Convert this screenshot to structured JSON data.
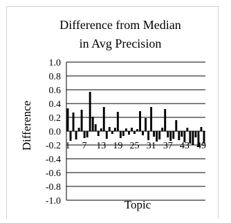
{
  "chart_data": {
    "type": "bar",
    "title_line1": "Difference from Median",
    "title_line2": "in Avg Precision",
    "xlabel": "Topic",
    "ylabel": "Difference",
    "ylim": [
      -1.0,
      1.0
    ],
    "yticks": [
      "1.0",
      "0.8",
      "0.6",
      "0.4",
      "0.2",
      "0.0",
      "-0.2",
      "-0.4",
      "-0.6",
      "-0.8",
      "-1.0"
    ],
    "grid": true,
    "legend": "none",
    "categories": [
      1,
      2,
      3,
      4,
      5,
      6,
      7,
      8,
      9,
      10,
      11,
      12,
      13,
      14,
      15,
      16,
      17,
      18,
      19,
      20,
      21,
      22,
      23,
      24,
      25,
      26,
      27,
      28,
      29,
      30,
      31,
      32,
      33,
      34,
      35,
      36,
      37,
      38,
      39,
      40,
      41,
      42,
      43,
      44,
      45,
      46,
      47,
      48,
      49,
      50
    ],
    "xtick_labels": [
      "1",
      "7",
      "13",
      "19",
      "25",
      "31",
      "37",
      "43",
      "49"
    ],
    "values": [
      0.33,
      -0.14,
      0.27,
      -0.12,
      0.05,
      0.31,
      -0.1,
      -0.09,
      0.57,
      0.21,
      0.1,
      -0.07,
      0.04,
      0.35,
      -0.11,
      0.06,
      -0.04,
      0.05,
      0.28,
      -0.1,
      -0.07,
      0.04,
      -0.05,
      0.05,
      -0.04,
      0.03,
      0.29,
      -0.06,
      0.19,
      -0.13,
      0.35,
      -0.08,
      -0.15,
      -0.12,
      0.05,
      0.32,
      -0.09,
      -0.14,
      -0.11,
      0.16,
      -0.13,
      -0.08,
      -0.16,
      0.05,
      -0.18,
      -0.2,
      -0.09,
      -0.22,
      0.06,
      -0.18
    ],
    "bar_color": "#000000"
  }
}
